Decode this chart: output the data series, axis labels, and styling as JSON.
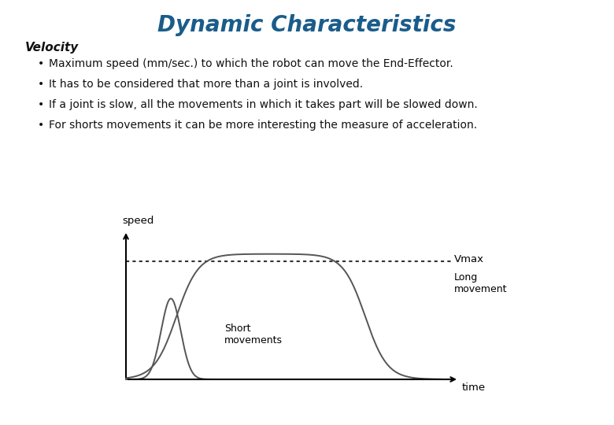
{
  "title": "Dynamic Characteristics",
  "title_color": "#1a5c8a",
  "title_fontsize": 20,
  "title_style": "italic",
  "title_weight": "bold",
  "section_label": "Velocity",
  "bullets": [
    "Maximum speed (mm/sec.) to which the robot can move the End-Effector.",
    "It has to be considered that more than a joint is involved.",
    "If a joint is slow, all the movements in which it takes part will be slowed down.",
    "For shorts movements it can be more interesting the measure of acceleration."
  ],
  "bullet_fontsize": 10,
  "section_fontsize": 11,
  "graph_xlabel": "time",
  "graph_ylabel": "speed",
  "vmax_label": "Vmax",
  "long_label": "Long\nmovement",
  "short_label": "Short\nmovements",
  "line_color": "#555555",
  "dot_line_color": "#333333",
  "background_color": "#ffffff"
}
